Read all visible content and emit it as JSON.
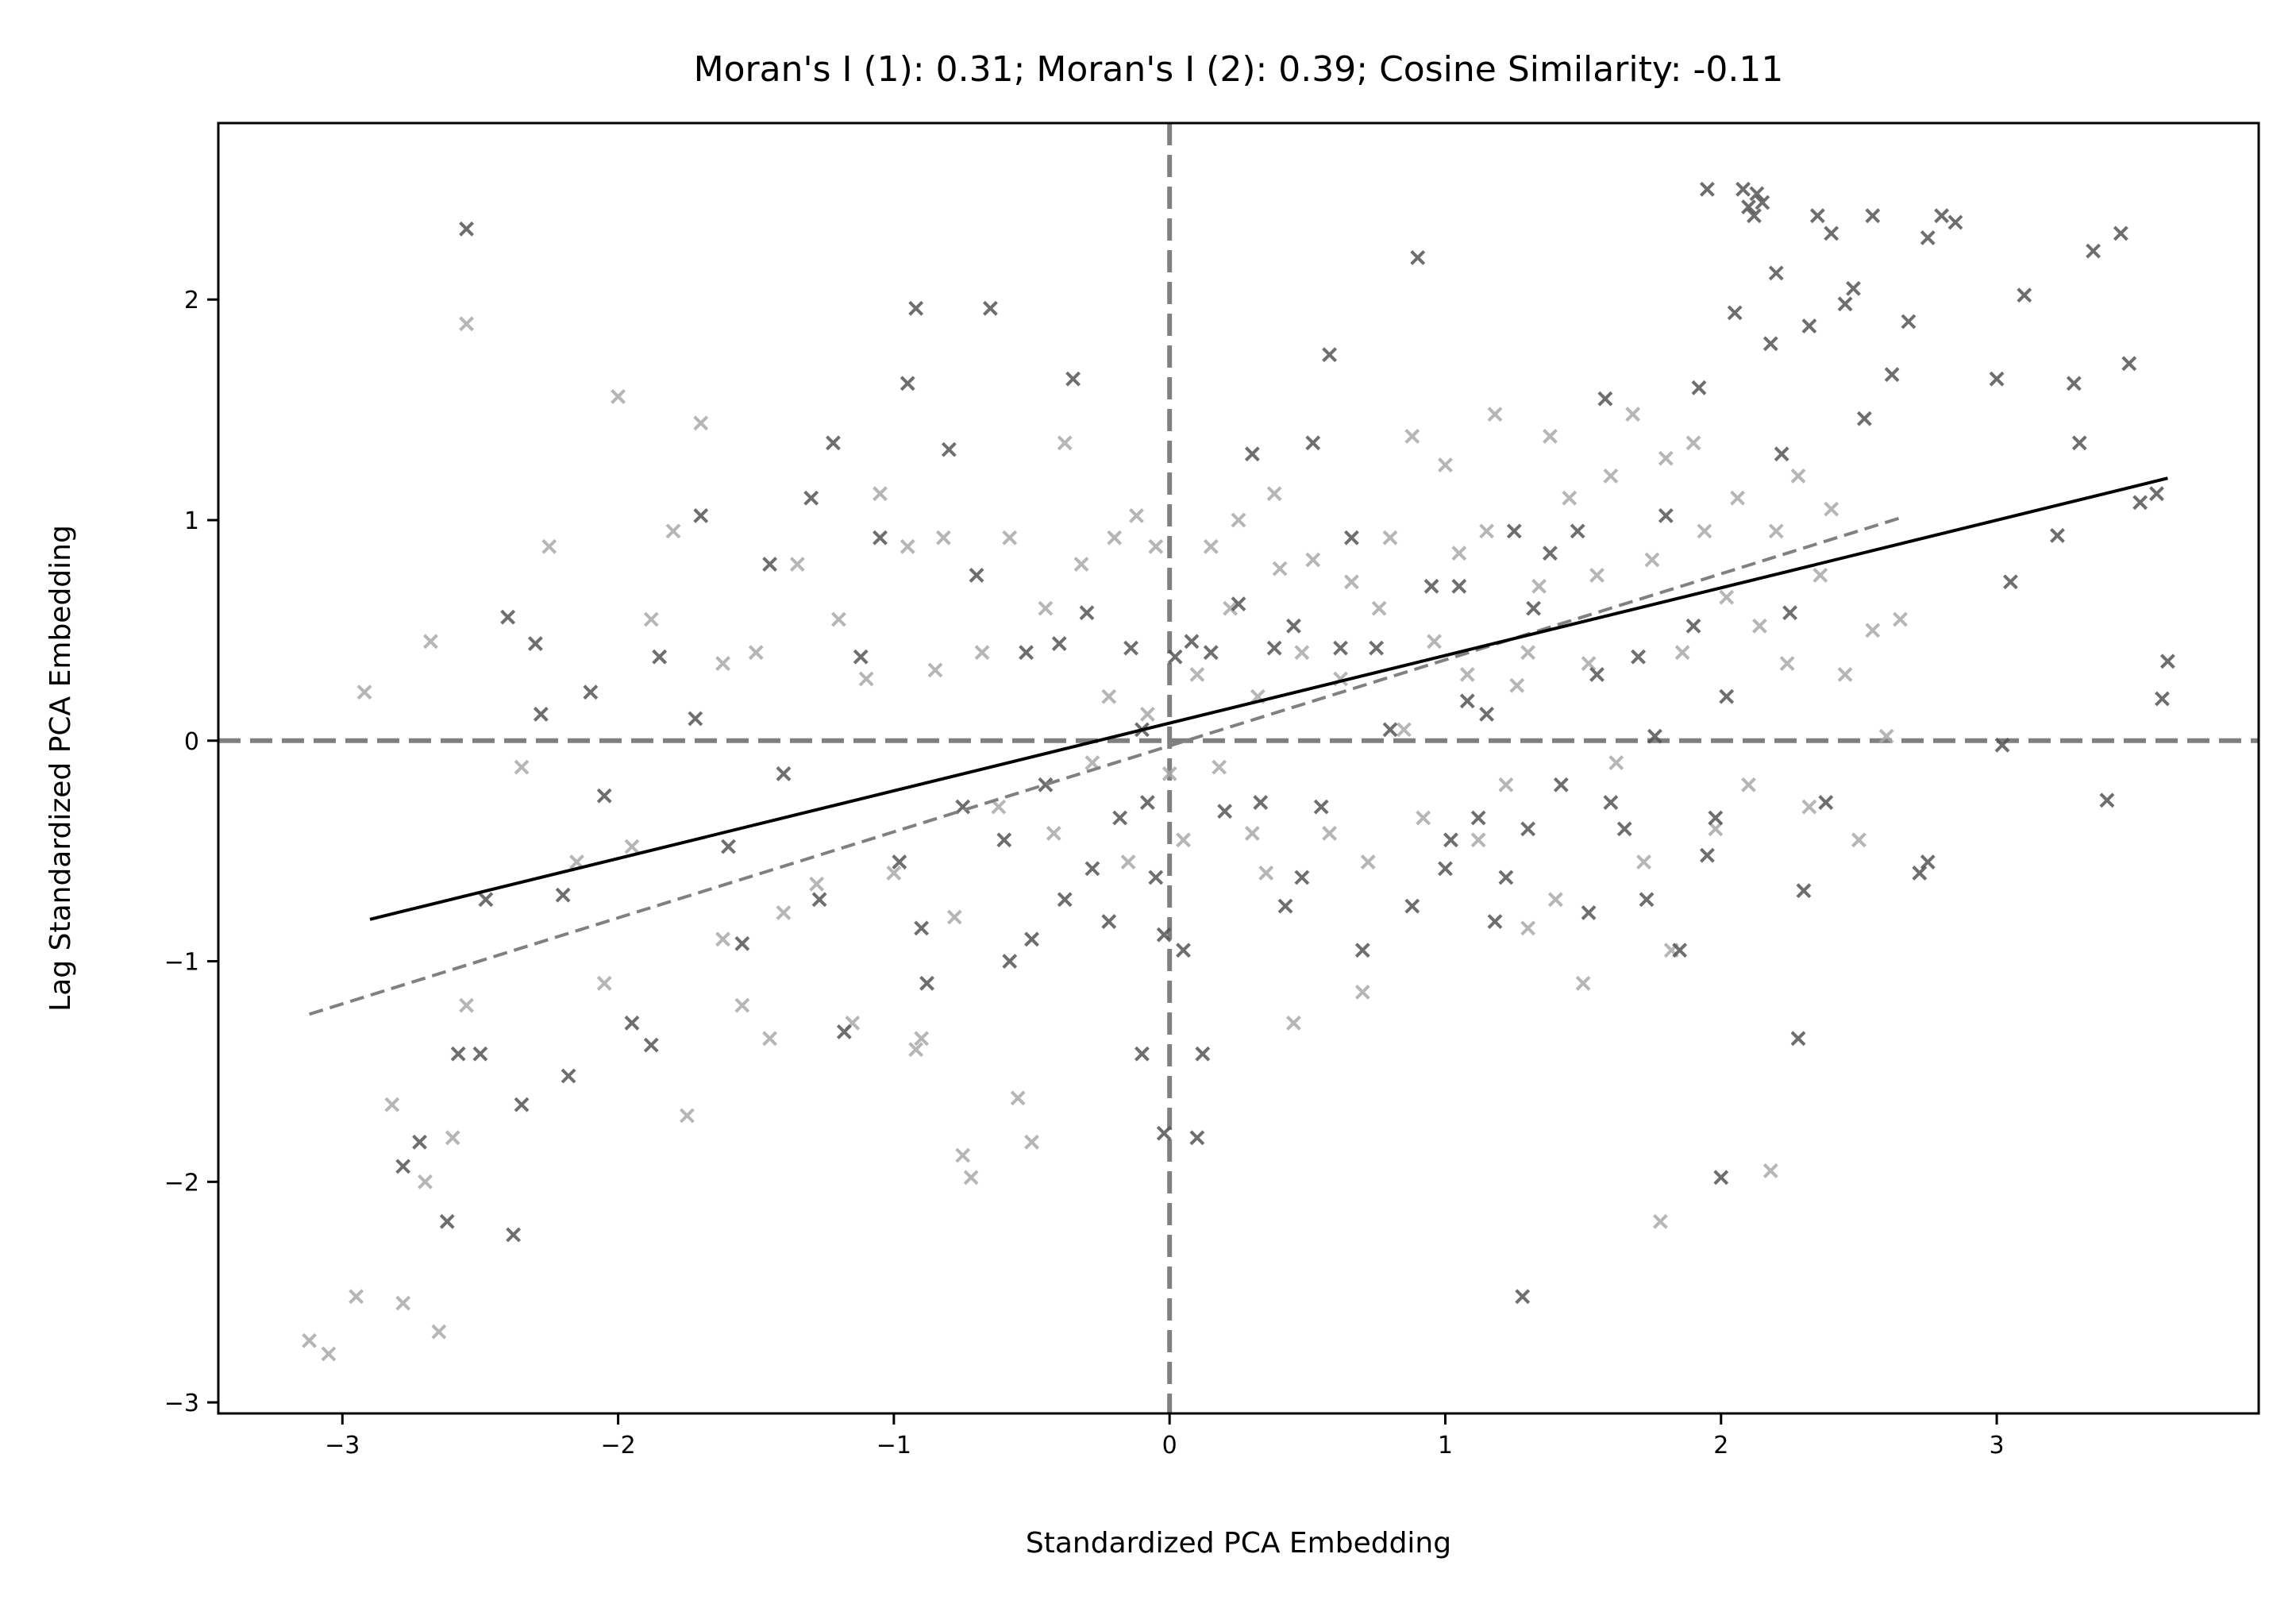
{
  "chart_data": {
    "type": "scatter",
    "title": "Moran's I (1): 0.31; Moran's I (2): 0.39; Cosine Similarity: -0.11",
    "xlabel": "Standardized PCA Embedding",
    "ylabel": "Lag Standardized PCA Embedding",
    "xlim": [
      -3.45,
      3.95
    ],
    "ylim": [
      -3.05,
      2.8
    ],
    "xticks": [
      -3,
      -2,
      -1,
      0,
      1,
      2,
      3
    ],
    "yticks": [
      -3,
      -2,
      -1,
      0,
      1,
      2
    ],
    "xtick_labels": [
      "−3",
      "−2",
      "−1",
      "0",
      "1",
      "2",
      "3"
    ],
    "ytick_labels": [
      "−3",
      "−2",
      "−1",
      "0",
      "1",
      "2"
    ],
    "reference_lines": {
      "x": 0,
      "y": 0,
      "style": "dashed",
      "color": "#808080"
    },
    "marker": "x",
    "series": [
      {
        "color": "#555555",
        "fit_line": {
          "x": [
            -2.9,
            3.62
          ],
          "y": [
            -0.81,
            1.19
          ],
          "color": "#000000",
          "style": "solid"
        },
        "points": [
          [
            -2.55,
            2.32
          ],
          [
            -2.58,
            -1.42
          ],
          [
            -2.48,
            -0.72
          ],
          [
            -2.4,
            0.56
          ],
          [
            -2.28,
            0.12
          ],
          [
            -2.2,
            -0.7
          ],
          [
            -2.18,
            -1.52
          ],
          [
            -2.35,
            -1.65
          ],
          [
            -2.38,
            -2.24
          ],
          [
            -2.72,
            -1.82
          ],
          [
            -2.78,
            -1.93
          ],
          [
            -2.62,
            -2.18
          ],
          [
            -2.5,
            -1.42
          ],
          [
            -2.3,
            0.44
          ],
          [
            -2.1,
            0.22
          ],
          [
            -2.05,
            -0.25
          ],
          [
            -1.95,
            -1.28
          ],
          [
            -1.88,
            -1.38
          ],
          [
            -1.85,
            0.38
          ],
          [
            -1.7,
            1.02
          ],
          [
            -1.72,
            0.1
          ],
          [
            -1.6,
            -0.48
          ],
          [
            -1.55,
            -0.92
          ],
          [
            -1.45,
            0.8
          ],
          [
            -1.4,
            -0.15
          ],
          [
            -1.3,
            1.1
          ],
          [
            -1.27,
            -0.72
          ],
          [
            -1.22,
            1.35
          ],
          [
            -1.18,
            -1.32
          ],
          [
            -1.12,
            0.38
          ],
          [
            -1.05,
            0.92
          ],
          [
            -0.98,
            -0.55
          ],
          [
            -0.95,
            1.62
          ],
          [
            -0.92,
            1.96
          ],
          [
            -0.9,
            -0.85
          ],
          [
            -0.88,
            -1.1
          ],
          [
            -0.8,
            1.32
          ],
          [
            -0.75,
            -0.3
          ],
          [
            -0.7,
            0.75
          ],
          [
            -0.65,
            1.96
          ],
          [
            -0.6,
            -0.45
          ],
          [
            -0.58,
            -1.0
          ],
          [
            -0.52,
            0.4
          ],
          [
            -0.5,
            -0.9
          ],
          [
            -0.45,
            -0.2
          ],
          [
            -0.4,
            0.44
          ],
          [
            -0.38,
            -0.72
          ],
          [
            -0.35,
            1.64
          ],
          [
            -0.3,
            0.58
          ],
          [
            -0.28,
            -0.58
          ],
          [
            -0.22,
            -0.82
          ],
          [
            -0.18,
            -0.35
          ],
          [
            -0.14,
            0.42
          ],
          [
            -0.1,
            0.05
          ],
          [
            -0.08,
            -0.28
          ],
          [
            -0.05,
            -0.62
          ],
          [
            -0.02,
            -0.88
          ],
          [
            -0.1,
            -1.42
          ],
          [
            -0.02,
            -1.78
          ],
          [
            0.02,
            0.38
          ],
          [
            0.05,
            -0.95
          ],
          [
            0.08,
            0.45
          ],
          [
            0.1,
            -1.8
          ],
          [
            0.12,
            -1.42
          ],
          [
            0.15,
            0.4
          ],
          [
            0.2,
            -0.32
          ],
          [
            0.25,
            0.62
          ],
          [
            0.3,
            1.3
          ],
          [
            0.33,
            -0.28
          ],
          [
            0.38,
            0.42
          ],
          [
            0.42,
            -0.75
          ],
          [
            0.45,
            0.52
          ],
          [
            0.48,
            -0.62
          ],
          [
            0.52,
            1.35
          ],
          [
            0.55,
            -0.3
          ],
          [
            0.58,
            1.75
          ],
          [
            0.62,
            0.42
          ],
          [
            0.66,
            0.92
          ],
          [
            0.7,
            -0.95
          ],
          [
            0.75,
            0.42
          ],
          [
            0.8,
            0.05
          ],
          [
            0.88,
            -0.75
          ],
          [
            0.9,
            2.19
          ],
          [
            0.95,
            0.7
          ],
          [
            1.0,
            -0.58
          ],
          [
            1.02,
            -0.45
          ],
          [
            1.05,
            0.7
          ],
          [
            1.08,
            0.18
          ],
          [
            1.12,
            -0.35
          ],
          [
            1.15,
            0.12
          ],
          [
            1.18,
            -0.82
          ],
          [
            1.22,
            -0.62
          ],
          [
            1.25,
            0.95
          ],
          [
            1.28,
            -2.52
          ],
          [
            1.3,
            -0.4
          ],
          [
            1.32,
            0.6
          ],
          [
            1.38,
            0.85
          ],
          [
            1.42,
            -0.2
          ],
          [
            1.48,
            0.95
          ],
          [
            1.52,
            -0.78
          ],
          [
            1.55,
            0.3
          ],
          [
            1.58,
            1.55
          ],
          [
            1.6,
            -0.28
          ],
          [
            1.65,
            -0.4
          ],
          [
            1.7,
            0.38
          ],
          [
            1.73,
            -0.72
          ],
          [
            1.76,
            0.02
          ],
          [
            1.8,
            1.02
          ],
          [
            1.85,
            -0.95
          ],
          [
            1.9,
            0.52
          ],
          [
            1.92,
            1.6
          ],
          [
            1.95,
            -0.52
          ],
          [
            1.98,
            -0.35
          ],
          [
            2.0,
            -1.98
          ],
          [
            2.02,
            0.2
          ],
          [
            2.05,
            1.94
          ],
          [
            2.08,
            2.5
          ],
          [
            2.1,
            2.42
          ],
          [
            2.12,
            2.38
          ],
          [
            2.15,
            2.44
          ],
          [
            2.18,
            1.8
          ],
          [
            2.2,
            2.12
          ],
          [
            2.22,
            1.3
          ],
          [
            2.25,
            0.58
          ],
          [
            2.28,
            -1.35
          ],
          [
            2.3,
            -0.68
          ],
          [
            2.32,
            1.88
          ],
          [
            2.35,
            2.38
          ],
          [
            2.38,
            -0.28
          ],
          [
            2.4,
            2.3
          ],
          [
            2.45,
            1.98
          ],
          [
            2.48,
            2.05
          ],
          [
            2.52,
            1.46
          ],
          [
            2.55,
            2.38
          ],
          [
            2.62,
            1.66
          ],
          [
            2.68,
            1.9
          ],
          [
            2.72,
            -0.6
          ],
          [
            2.75,
            2.28
          ],
          [
            2.8,
            2.38
          ],
          [
            2.85,
            2.35
          ],
          [
            3.0,
            1.64
          ],
          [
            3.02,
            -0.02
          ],
          [
            3.05,
            0.72
          ],
          [
            3.1,
            2.02
          ],
          [
            3.22,
            0.93
          ],
          [
            3.28,
            1.62
          ],
          [
            3.3,
            1.35
          ],
          [
            3.35,
            2.22
          ],
          [
            3.4,
            -0.27
          ],
          [
            3.45,
            2.3
          ],
          [
            3.48,
            1.71
          ],
          [
            3.52,
            1.08
          ],
          [
            3.58,
            1.12
          ],
          [
            3.62,
            0.36
          ],
          [
            3.6,
            0.19
          ],
          [
            1.95,
            2.5
          ],
          [
            2.13,
            2.48
          ],
          [
            2.75,
            -0.55
          ]
        ]
      },
      {
        "color": "#aaaaaa",
        "fit_line": {
          "x": [
            -3.12,
            2.65
          ],
          "y": [
            -1.24,
            1.01
          ],
          "color": "#808080",
          "style": "dashed"
        },
        "points": [
          [
            -3.12,
            -2.72
          ],
          [
            -3.05,
            -2.78
          ],
          [
            -2.95,
            -2.52
          ],
          [
            -2.78,
            -2.55
          ],
          [
            -2.65,
            -2.68
          ],
          [
            -2.82,
            -1.65
          ],
          [
            -2.7,
            -2.0
          ],
          [
            -2.6,
            -1.8
          ],
          [
            -2.55,
            -1.2
          ],
          [
            -2.92,
            0.22
          ],
          [
            -2.68,
            0.45
          ],
          [
            -2.55,
            1.89
          ],
          [
            -2.35,
            -0.12
          ],
          [
            -2.25,
            0.88
          ],
          [
            -2.15,
            -0.55
          ],
          [
            -2.05,
            -1.1
          ],
          [
            -2.0,
            1.56
          ],
          [
            -1.95,
            -0.48
          ],
          [
            -1.88,
            0.55
          ],
          [
            -1.8,
            0.95
          ],
          [
            -1.75,
            -1.7
          ],
          [
            -1.7,
            1.44
          ],
          [
            -1.62,
            -0.9
          ],
          [
            -1.55,
            -1.2
          ],
          [
            -1.5,
            0.4
          ],
          [
            -1.45,
            -1.35
          ],
          [
            -1.4,
            -0.78
          ],
          [
            -1.35,
            0.8
          ],
          [
            -1.28,
            -0.65
          ],
          [
            -1.2,
            0.55
          ],
          [
            -1.15,
            -1.28
          ],
          [
            -1.1,
            0.28
          ],
          [
            -1.05,
            1.12
          ],
          [
            -1.0,
            -0.6
          ],
          [
            -0.95,
            0.88
          ],
          [
            -0.9,
            -1.35
          ],
          [
            -0.85,
            0.32
          ],
          [
            -0.82,
            0.92
          ],
          [
            -0.78,
            -0.8
          ],
          [
            -0.75,
            -1.88
          ],
          [
            -0.72,
            -1.98
          ],
          [
            -0.68,
            0.4
          ],
          [
            -0.62,
            -0.3
          ],
          [
            -0.58,
            0.92
          ],
          [
            -0.55,
            -1.62
          ],
          [
            -0.5,
            -1.82
          ],
          [
            -0.45,
            0.6
          ],
          [
            -0.42,
            -0.42
          ],
          [
            -0.38,
            1.35
          ],
          [
            -0.32,
            0.8
          ],
          [
            -0.28,
            -0.1
          ],
          [
            -0.22,
            0.2
          ],
          [
            -0.2,
            0.92
          ],
          [
            -0.15,
            -0.55
          ],
          [
            -0.12,
            1.02
          ],
          [
            -0.08,
            0.12
          ],
          [
            -0.05,
            0.88
          ],
          [
            0.0,
            -0.15
          ],
          [
            0.05,
            -0.45
          ],
          [
            0.1,
            0.3
          ],
          [
            0.15,
            0.88
          ],
          [
            0.18,
            -0.12
          ],
          [
            0.22,
            0.6
          ],
          [
            0.25,
            1.0
          ],
          [
            0.3,
            -0.42
          ],
          [
            0.32,
            0.2
          ],
          [
            0.35,
            -0.6
          ],
          [
            0.38,
            1.12
          ],
          [
            0.4,
            0.78
          ],
          [
            0.45,
            -1.28
          ],
          [
            0.48,
            0.4
          ],
          [
            0.52,
            0.82
          ],
          [
            0.58,
            -0.42
          ],
          [
            0.62,
            0.28
          ],
          [
            0.66,
            0.72
          ],
          [
            0.7,
            -1.14
          ],
          [
            0.72,
            -0.55
          ],
          [
            0.76,
            0.6
          ],
          [
            0.8,
            0.92
          ],
          [
            0.85,
            0.05
          ],
          [
            0.88,
            1.38
          ],
          [
            0.92,
            -0.35
          ],
          [
            0.96,
            0.45
          ],
          [
            1.0,
            1.25
          ],
          [
            1.05,
            0.85
          ],
          [
            1.08,
            0.3
          ],
          [
            1.12,
            -0.45
          ],
          [
            1.15,
            0.95
          ],
          [
            1.18,
            1.48
          ],
          [
            1.22,
            -0.2
          ],
          [
            1.26,
            0.25
          ],
          [
            1.3,
            -0.85
          ],
          [
            1.34,
            0.7
          ],
          [
            1.38,
            1.38
          ],
          [
            1.4,
            -0.72
          ],
          [
            1.45,
            1.1
          ],
          [
            1.5,
            -1.1
          ],
          [
            1.52,
            0.35
          ],
          [
            1.55,
            0.75
          ],
          [
            1.6,
            1.2
          ],
          [
            1.62,
            -0.1
          ],
          [
            1.68,
            1.48
          ],
          [
            1.72,
            -0.55
          ],
          [
            1.75,
            0.82
          ],
          [
            1.78,
            -2.18
          ],
          [
            1.8,
            1.28
          ],
          [
            1.82,
            -0.95
          ],
          [
            1.86,
            0.4
          ],
          [
            1.9,
            1.35
          ],
          [
            1.94,
            0.95
          ],
          [
            1.98,
            -0.4
          ],
          [
            2.02,
            0.65
          ],
          [
            2.06,
            1.1
          ],
          [
            2.1,
            -0.2
          ],
          [
            2.14,
            0.52
          ],
          [
            2.18,
            -1.95
          ],
          [
            2.2,
            0.95
          ],
          [
            2.24,
            0.35
          ],
          [
            2.28,
            1.2
          ],
          [
            2.32,
            -0.3
          ],
          [
            2.36,
            0.75
          ],
          [
            2.4,
            1.05
          ],
          [
            2.45,
            0.3
          ],
          [
            2.5,
            -0.45
          ],
          [
            2.55,
            0.5
          ],
          [
            2.6,
            0.02
          ],
          [
            2.65,
            0.55
          ],
          [
            -1.62,
            0.35
          ],
          [
            -0.92,
            -1.4
          ],
          [
            1.3,
            0.4
          ]
        ]
      }
    ]
  }
}
